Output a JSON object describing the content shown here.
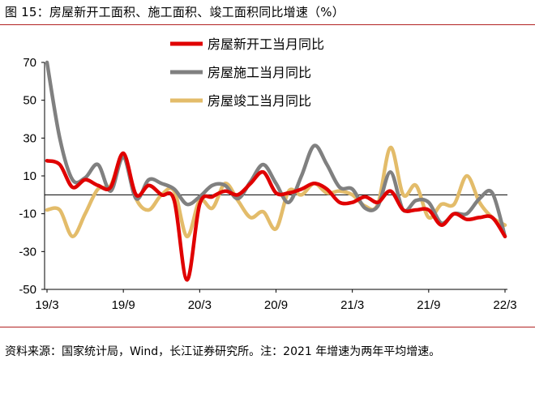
{
  "figure": {
    "title": "图 15：房屋新开工面积、施工面积、竣工面积同比增速（%）",
    "source": "资料来源：国家统计局，Wind，长江证券研究所。注：2021 年增速为两年平均增速。"
  },
  "chart_data": {
    "type": "line",
    "title": "房屋新开工面积、施工面积、竣工面积同比增速（%）",
    "xlabel": "",
    "ylabel": "%",
    "ylim": [
      -50,
      70
    ],
    "yticks": [
      70,
      50,
      30,
      10,
      -10,
      -30,
      -50
    ],
    "xtick_labels": [
      "19/3",
      "19/9",
      "20/3",
      "20/9",
      "21/3",
      "21/9",
      "22/3"
    ],
    "x": [
      "19/3",
      "19/4",
      "19/5",
      "19/6",
      "19/7",
      "19/8",
      "19/9",
      "19/10",
      "19/11",
      "19/12",
      "20/1",
      "20/2",
      "20/3",
      "20/4",
      "20/5",
      "20/6",
      "20/7",
      "20/8",
      "20/9",
      "20/10",
      "20/11",
      "20/12",
      "21/1",
      "21/2",
      "21/3",
      "21/4",
      "21/5",
      "21/6",
      "21/7",
      "21/8",
      "21/9",
      "21/10",
      "21/11",
      "21/12",
      "22/1",
      "22/2",
      "22/3"
    ],
    "legend_position": "top-center",
    "zero_line": true,
    "series": [
      {
        "name": "房屋新开工当月同比",
        "color": "#e00000",
        "values": [
          18,
          16,
          4,
          8,
          5,
          4,
          22,
          0,
          5,
          0,
          -3,
          -45,
          -5,
          -1,
          2,
          0,
          6,
          12,
          1,
          1,
          3,
          6,
          3,
          -4,
          -4,
          -1,
          -4,
          2,
          -8,
          -8,
          -8,
          -16,
          -10,
          -13,
          -12,
          -12,
          -22
        ]
      },
      {
        "name": "房屋施工当月同比",
        "color": "#808080",
        "values": [
          70,
          30,
          8,
          9,
          16,
          2,
          20,
          -2,
          8,
          6,
          3,
          -5,
          -1,
          5,
          5,
          -2,
          7,
          16,
          6,
          -4,
          10,
          26,
          16,
          4,
          3,
          -7,
          -6,
          12,
          -8,
          -3,
          -4,
          -15,
          -10,
          -10,
          -2,
          1,
          -22
        ]
      },
      {
        "name": "房屋竣工当月同比",
        "color": "#e3bc6a",
        "values": [
          -8,
          -8,
          -22,
          -10,
          3,
          5,
          21,
          -2,
          -8,
          0,
          2,
          -22,
          -3,
          -7,
          6,
          -3,
          -12,
          -9,
          -18,
          2,
          0,
          6,
          1,
          2,
          0,
          -6,
          -5,
          25,
          0,
          5,
          -12,
          -5,
          -5,
          10,
          -4,
          -12,
          -16
        ]
      }
    ]
  }
}
